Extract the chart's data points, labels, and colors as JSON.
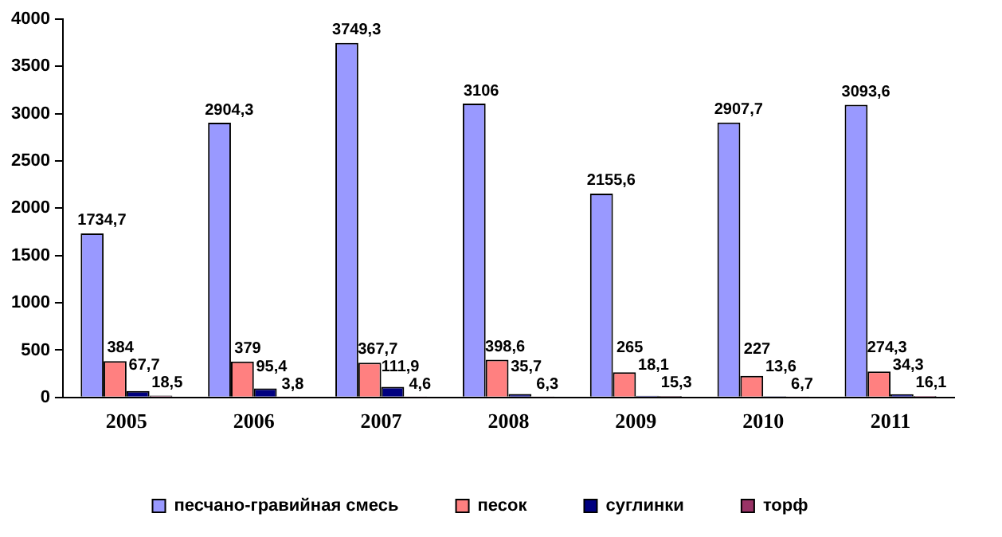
{
  "chart_data": {
    "type": "bar",
    "categories": [
      "2005",
      "2006",
      "2007",
      "2008",
      "2009",
      "2010",
      "2011"
    ],
    "series": [
      {
        "name": "песчано-гравийная смесь",
        "color": "#9999ff",
        "values": [
          1734.7,
          2904.3,
          3749.3,
          3106,
          2155.6,
          2907.7,
          3093.6
        ],
        "value_labels": [
          "1734,7",
          "2904,3",
          "3749,3",
          "3106",
          "2155,6",
          "2907,7",
          "3093,6"
        ]
      },
      {
        "name": "песок",
        "color": "#ff8080",
        "values": [
          384,
          379,
          367.7,
          398.6,
          265,
          227,
          274.3
        ],
        "value_labels": [
          "384",
          "379",
          "367,7",
          "398,6",
          "265",
          "227",
          "274,3"
        ]
      },
      {
        "name": "суглинки",
        "color": "#000080",
        "values": [
          67.7,
          95.4,
          111.9,
          35.7,
          18.1,
          13.6,
          34.3
        ],
        "value_labels": [
          "67,7",
          "95,4",
          "111,9",
          "35,7",
          "18,1",
          "13,6",
          "34,3"
        ]
      },
      {
        "name": "торф",
        "color": "#993366",
        "values": [
          18.5,
          3.8,
          4.6,
          6.3,
          15.3,
          6.7,
          16.1
        ],
        "value_labels": [
          "18,5",
          "3,8",
          "4,6",
          "6,3",
          "15,3",
          "6,7",
          "16,1"
        ]
      }
    ],
    "ylim": [
      0,
      4000
    ],
    "yticks": [
      0,
      500,
      1000,
      1500,
      2000,
      2500,
      3000,
      3500,
      4000
    ],
    "grid": false,
    "legend": "bottom"
  }
}
